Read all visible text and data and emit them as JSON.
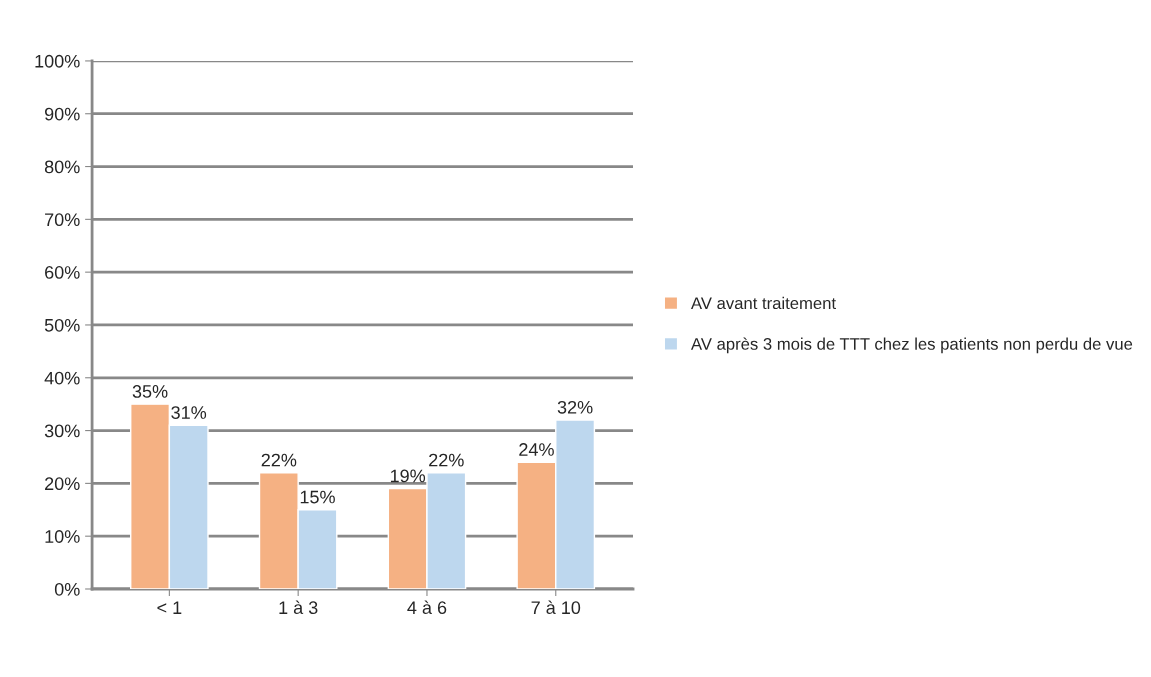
{
  "chart_data": {
    "type": "bar",
    "categories": [
      "< 1",
      "1 à 3",
      "4 à 6",
      "7 à 10"
    ],
    "series": [
      {
        "name": "AV avant traitement",
        "color": "#f5b183",
        "values": [
          35,
          22,
          19,
          24
        ],
        "value_labels": [
          "35%",
          "22%",
          "19%",
          "24%"
        ]
      },
      {
        "name": "AV après 3 mois de TTT chez les patients non perdu de vue",
        "color": "#bdd7ee",
        "values": [
          31,
          15,
          22,
          32
        ],
        "value_labels": [
          "31%",
          "15%",
          "22%",
          "32%"
        ]
      }
    ],
    "ylim": [
      0,
      100
    ],
    "yticks": [
      {
        "value": 0,
        "label": "0%"
      },
      {
        "value": 10,
        "label": "10%"
      },
      {
        "value": 20,
        "label": "20%"
      },
      {
        "value": 30,
        "label": "30%"
      },
      {
        "value": 40,
        "label": "40%"
      },
      {
        "value": 50,
        "label": "50%"
      },
      {
        "value": 60,
        "label": "60%"
      },
      {
        "value": 70,
        "label": "70%"
      },
      {
        "value": 80,
        "label": "80%"
      },
      {
        "value": 90,
        "label": "90%"
      },
      {
        "value": 100,
        "label": "100%"
      }
    ],
    "grid": "y",
    "legend": "right"
  }
}
